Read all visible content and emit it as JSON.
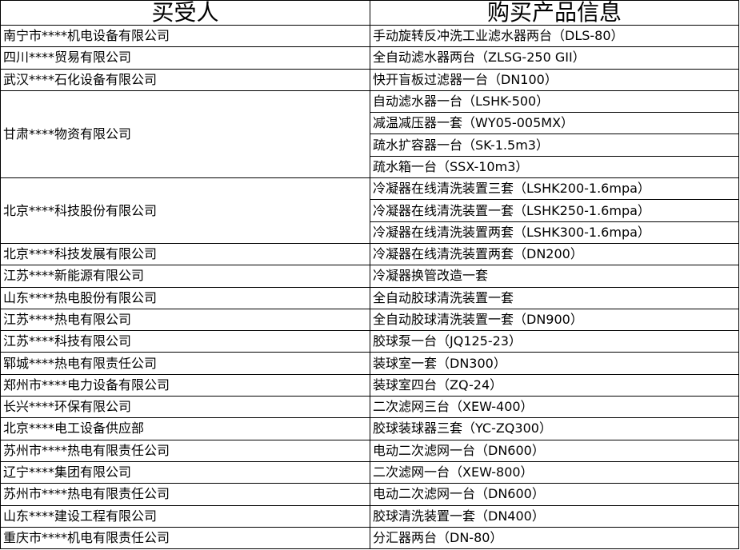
{
  "headers": {
    "buyer": "买受人",
    "product": "购买产品信息"
  },
  "groups": [
    {
      "buyer": "南宁市****机电设备有限公司",
      "products": [
        "手动旋转反冲洗工业滤水器两台（DLS-80）"
      ]
    },
    {
      "buyer": "四川****贸易有限公司",
      "products": [
        "全自动滤水器两台（ZLSG-250 GII）"
      ]
    },
    {
      "buyer": "武汉****石化设备有限公司",
      "products": [
        "快开盲板过滤器一台（DN100）"
      ]
    },
    {
      "buyer": "甘肃****物资有限公司",
      "products": [
        "自动滤水器一台（LSHK-500）",
        "减温减压器一套（WY05-005MX）",
        "疏水扩容器一台（SK-1.5m3）",
        "疏水箱一台（SSX-10m3）"
      ]
    },
    {
      "buyer": "北京****科技股份有限公司",
      "products": [
        "冷凝器在线清洗装置三套（LSHK200-1.6mpa）",
        "冷凝器在线清洗装置一套（LSHK250-1.6mpa）",
        "冷凝器在线清洗装置两套（LSHK300-1.6mpa）"
      ]
    },
    {
      "buyer": "北京****科技发展有限公司",
      "products": [
        "冷凝器在线清洗装置两套（DN200）"
      ]
    },
    {
      "buyer": "江苏****新能源有限公司",
      "products": [
        "冷凝器换管改造一套"
      ]
    },
    {
      "buyer": "山东****热电股份有限公司",
      "products": [
        "全自动胶球清洗装置一套"
      ]
    },
    {
      "buyer": "江苏****热电有限公司",
      "products": [
        "全自动胶球清洗装置一套（DN900）"
      ]
    },
    {
      "buyer": "江苏****科技有限公司",
      "products": [
        "胶球泵一台（JQ125-23）"
      ]
    },
    {
      "buyer": "郓城****热电有限责任公司",
      "products": [
        "装球室一套（DN300）"
      ]
    },
    {
      "buyer": "郑州市****电力设备有限公司",
      "products": [
        "装球室四台（ZQ-24）"
      ]
    },
    {
      "buyer": "长兴****环保有限公司",
      "products": [
        "二次滤网三台（XEW-400）"
      ]
    },
    {
      "buyer": "北京****电工设备供应部",
      "products": [
        "胶球装球器三套（YC-ZQ300）"
      ]
    },
    {
      "buyer": "苏州市****热电有限责任公司",
      "products": [
        "电动二次滤网一台（DN600）"
      ]
    },
    {
      "buyer": "辽宁****集团有限公司",
      "products": [
        "二次滤网一台（XEW-800）"
      ]
    },
    {
      "buyer": "苏州市****热电有限责任公司",
      "products": [
        "电动二次滤网一台（DN600）"
      ]
    },
    {
      "buyer": "山东****建设工程有限公司",
      "products": [
        "胶球清洗装置一套（DN400）"
      ]
    },
    {
      "buyer": "重庆市****机电有限责任公司",
      "products": [
        "分汇器两台（DN-80）"
      ]
    }
  ]
}
